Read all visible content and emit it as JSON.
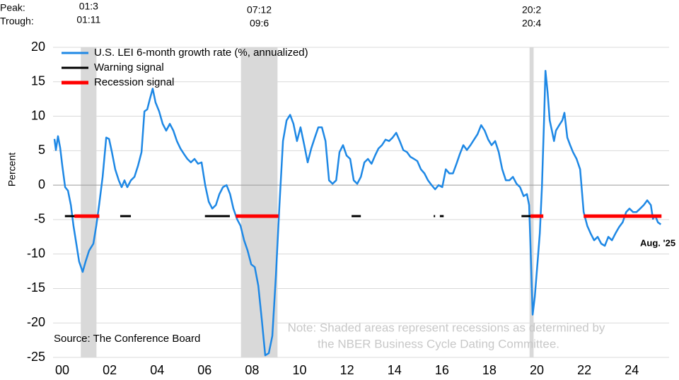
{
  "chart_data": {
    "type": "line",
    "y_label": "Percent",
    "ylim": [
      -25,
      20
    ],
    "yticks": [
      -25,
      -20,
      -15,
      -10,
      -5,
      0,
      5,
      10,
      15,
      20
    ],
    "xlim": [
      2000,
      2025.9
    ],
    "xticks": [
      {
        "value": 2000,
        "label": "00"
      },
      {
        "value": 2002,
        "label": "02"
      },
      {
        "value": 2004,
        "label": "04"
      },
      {
        "value": 2006,
        "label": "06"
      },
      {
        "value": 2008,
        "label": "08"
      },
      {
        "value": 2010,
        "label": "10"
      },
      {
        "value": 2012,
        "label": "12"
      },
      {
        "value": 2014,
        "label": "14"
      },
      {
        "value": 2016,
        "label": "16"
      },
      {
        "value": 2018,
        "label": "18"
      },
      {
        "value": 2020,
        "label": "20"
      },
      {
        "value": 2022,
        "label": "22"
      },
      {
        "value": 2024,
        "label": "24"
      }
    ],
    "grid": true,
    "series": [
      {
        "name": "U.S. LEI 6-month growth rate (%, annualized)",
        "color": "#1e88e5",
        "x": [
          2000.06,
          2000.12,
          2000.21,
          2000.3,
          2000.39,
          2000.51,
          2000.63,
          2000.75,
          2000.86,
          2000.98,
          2001.1,
          2001.25,
          2001.37,
          2001.52,
          2001.7,
          2001.82,
          2001.94,
          2002.09,
          2002.24,
          2002.36,
          2002.48,
          2002.62,
          2002.77,
          2002.89,
          2003.01,
          2003.13,
          2003.28,
          2003.43,
          2003.58,
          2003.73,
          2003.85,
          2003.97,
          2004.08,
          2004.2,
          2004.32,
          2004.47,
          2004.62,
          2004.77,
          2004.92,
          2005.07,
          2005.22,
          2005.37,
          2005.52,
          2005.66,
          2005.81,
          2005.96,
          2006.11,
          2006.26,
          2006.41,
          2006.56,
          2006.71,
          2006.86,
          2007.01,
          2007.16,
          2007.31,
          2007.46,
          2007.6,
          2007.75,
          2007.9,
          2008.05,
          2008.2,
          2008.35,
          2008.5,
          2008.65,
          2008.79,
          2008.94,
          2009.09,
          2009.24,
          2009.39,
          2009.54,
          2009.69,
          2009.84,
          2009.99,
          2010.13,
          2010.28,
          2010.43,
          2010.58,
          2010.73,
          2010.88,
          2011.03,
          2011.18,
          2011.33,
          2011.48,
          2011.63,
          2011.78,
          2011.93,
          2012.07,
          2012.22,
          2012.37,
          2012.52,
          2012.67,
          2012.82,
          2012.97,
          2013.12,
          2013.27,
          2013.42,
          2013.57,
          2013.71,
          2013.86,
          2014.01,
          2014.16,
          2014.31,
          2014.46,
          2014.61,
          2014.76,
          2014.91,
          2015.06,
          2015.21,
          2015.35,
          2015.5,
          2015.65,
          2015.8,
          2015.95,
          2016.1,
          2016.25,
          2016.4,
          2016.55,
          2016.7,
          2016.85,
          2017.0,
          2017.14,
          2017.29,
          2017.44,
          2017.59,
          2017.74,
          2017.89,
          2018.04,
          2018.19,
          2018.34,
          2018.48,
          2018.63,
          2018.78,
          2018.93,
          2019.08,
          2019.23,
          2019.38,
          2019.53,
          2019.68,
          2019.83,
          2019.97,
          2020.06,
          2020.12,
          2020.21,
          2020.3,
          2020.42,
          2020.51,
          2020.6,
          2020.69,
          2020.75,
          2020.84,
          2020.93,
          2021.02,
          2021.11,
          2021.19,
          2021.31,
          2021.46,
          2021.55,
          2021.67,
          2021.79,
          2021.91,
          2022.06,
          2022.21,
          2022.36,
          2022.51,
          2022.65,
          2022.8,
          2022.95,
          2023.1,
          2023.25,
          2023.4,
          2023.55,
          2023.7,
          2023.85,
          2024.0,
          2024.15,
          2024.29,
          2024.44,
          2024.59,
          2024.74,
          2024.89,
          2025.04,
          2025.19,
          2025.28,
          2025.37,
          2025.49,
          2025.61
        ],
        "values": [
          6.7,
          5.1,
          7.1,
          5.4,
          2.8,
          -0.3,
          -0.8,
          -2.9,
          -5.9,
          -8.5,
          -11.1,
          -12.6,
          -11.1,
          -9.5,
          -8.5,
          -5.9,
          -2.9,
          1.2,
          6.9,
          6.7,
          4.8,
          2.3,
          0.7,
          -0.3,
          0.7,
          -0.3,
          0.7,
          1.2,
          2.8,
          4.8,
          10.7,
          11.0,
          12.5,
          14.0,
          12.0,
          10.7,
          8.9,
          7.9,
          8.9,
          7.9,
          6.4,
          5.3,
          4.5,
          3.8,
          3.3,
          3.8,
          3.1,
          3.3,
          0.0,
          -2.4,
          -3.4,
          -2.9,
          -1.3,
          -0.3,
          0.0,
          -1.3,
          -3.4,
          -4.9,
          -5.9,
          -8.0,
          -9.5,
          -11.5,
          -11.9,
          -14.6,
          -19.3,
          -24.7,
          -24.4,
          -21.9,
          -13.1,
          -2.9,
          6.4,
          9.4,
          10.2,
          8.9,
          6.4,
          8.4,
          5.9,
          3.3,
          5.3,
          6.9,
          8.4,
          8.4,
          6.4,
          0.7,
          0.2,
          0.7,
          4.8,
          5.8,
          4.3,
          3.8,
          0.7,
          0.2,
          1.2,
          3.3,
          3.8,
          3.1,
          4.3,
          5.3,
          5.8,
          6.6,
          6.4,
          6.9,
          7.6,
          6.4,
          5.1,
          4.8,
          4.1,
          3.8,
          3.5,
          2.3,
          1.7,
          0.7,
          0.0,
          -0.6,
          0.0,
          -0.3,
          2.3,
          1.7,
          1.7,
          3.1,
          4.5,
          5.8,
          5.1,
          5.8,
          6.6,
          7.4,
          8.7,
          7.9,
          6.6,
          5.8,
          6.4,
          4.8,
          2.3,
          0.7,
          0.7,
          1.2,
          0.2,
          -0.3,
          -1.6,
          -1.3,
          -2.9,
          -9.0,
          -18.8,
          -16.2,
          -11.1,
          -7.0,
          -0.3,
          9.4,
          16.6,
          13.5,
          9.4,
          7.9,
          6.4,
          7.9,
          8.6,
          9.4,
          10.5,
          6.9,
          5.8,
          4.8,
          3.8,
          2.3,
          -3.9,
          -5.9,
          -7.0,
          -8.0,
          -7.5,
          -8.5,
          -8.8,
          -7.5,
          -8.0,
          -7.0,
          -6.1,
          -5.4,
          -3.9,
          -3.4,
          -3.9,
          -3.9,
          -3.4,
          -2.9,
          -2.2,
          -2.9,
          -4.9,
          -4.4,
          -5.4,
          -5.7
        ]
      }
    ],
    "signals": [
      {
        "name": "Warning signal",
        "color": "#000000",
        "level": -4.5,
        "periods": [
          [
            2000.5,
            2001.1
          ],
          [
            2002.83,
            2003.28
          ],
          [
            2006.4,
            2007.45
          ],
          [
            2012.58,
            2012.97
          ],
          [
            2016.04,
            2016.1
          ],
          [
            2016.3,
            2016.46
          ],
          [
            2019.74,
            2020.12
          ]
        ]
      },
      {
        "name": "Recession signal",
        "color": "#ff0000",
        "level": -4.5,
        "periods": [
          [
            2000.9,
            2001.95
          ],
          [
            2007.7,
            2009.5
          ],
          [
            2020.12,
            2020.66
          ],
          [
            2022.36,
            2025.64
          ]
        ]
      }
    ],
    "recessions": {
      "peak_label": "Peak:",
      "trough_label": "Trough:",
      "color": "#d9d9d9",
      "periods": [
        {
          "peak": "01:3",
          "trough": "01:11",
          "start": 2001.17,
          "end": 2001.83
        },
        {
          "peak": "07:12",
          "trough": "09:6",
          "start": 2007.92,
          "end": 2009.46
        },
        {
          "peak": "20:2",
          "trough": "20:4",
          "start": 2020.08,
          "end": 2020.25
        }
      ]
    },
    "source": "Source: The Conference Board",
    "note": [
      "Note: Shaded areas represent recessions as determined by",
      "the NBER Business Cycle Dating Committee."
    ],
    "last_label": "Aug. '25"
  }
}
